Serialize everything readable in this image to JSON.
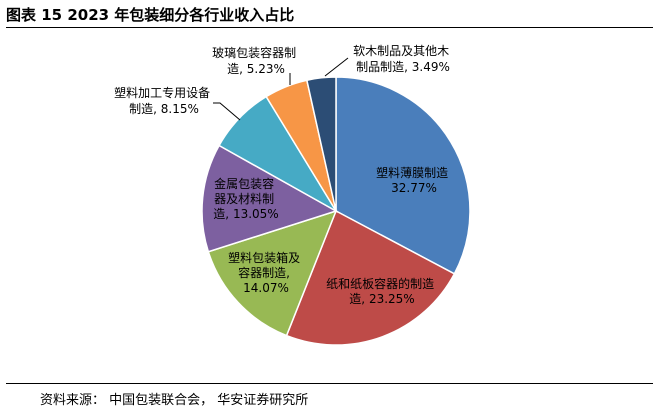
{
  "page": {
    "title": "图表 15 2023 年包装细分各行业收入占比",
    "source": "资料来源：  中国包装联合会，  华安证券研究所"
  },
  "chart_data": {
    "type": "pie",
    "title": "",
    "start": "12 o'clock, clockwise",
    "slices": [
      {
        "label": "塑料薄膜制造",
        "value": 32.77,
        "display": "32.77%",
        "color": "#4A7EBB"
      },
      {
        "label": "纸和纸板容器的制造",
        "value": 23.25,
        "display": "23.25%",
        "color": "#BE4B48"
      },
      {
        "label": "塑料包装箱及容器制造",
        "value": 14.07,
        "display": "14.07%",
        "color": "#98B954"
      },
      {
        "label": "金属包装容器及材料制造",
        "value": 13.05,
        "display": "13.05%",
        "color": "#7D60A0"
      },
      {
        "label": "塑料加工专用设备制造",
        "value": 8.15,
        "display": "8.15%",
        "color": "#46AAC5"
      },
      {
        "label": "玻璃包装容器制造",
        "value": 5.23,
        "display": "5.23%",
        "color": "#F79646"
      },
      {
        "label": "软木制品及其他木制品制造",
        "value": 3.49,
        "display": "3.49%",
        "color": "#2C4D75"
      }
    ]
  }
}
